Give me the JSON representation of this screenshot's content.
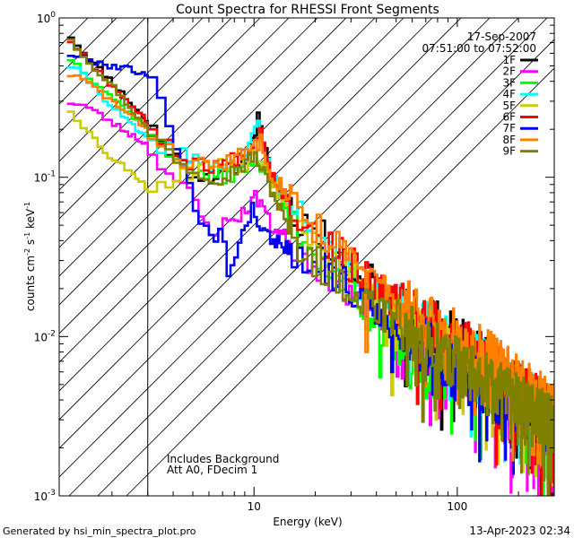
{
  "chart_data": {
    "type": "line",
    "title": "Count Spectra for RHESSI Front Segments",
    "xlabel": "Energy (keV)",
    "ylabel": "counts cm-2 s-1 keV-1",
    "xscale": "log",
    "yscale": "log",
    "xlim": [
      1.1,
      300
    ],
    "ylim": [
      0.001,
      1.0
    ],
    "x_tick_labels": [
      {
        "value": 10,
        "label": "10"
      },
      {
        "value": 100,
        "label": "100"
      }
    ],
    "y_tick_labels": [
      {
        "value": 1.0,
        "base": "10",
        "exp": "0"
      },
      {
        "value": 0.1,
        "base": "10",
        "exp": "-1"
      },
      {
        "value": 0.01,
        "base": "10",
        "exp": "-2"
      },
      {
        "value": 0.001,
        "base": "10",
        "exp": "-3"
      }
    ],
    "date": "17-Sep-2007",
    "time_range": "07:51:00 to 07:52:00",
    "annotations": [
      "Includes Background",
      "Att A0, FDecim 1"
    ],
    "attenuator_threshold_kev": 3.0,
    "hatched_region": [
      1.1,
      3.0
    ],
    "footer_left": "Generated by hsi_min_spectra_plot.pro",
    "footer_right": "13-Apr-2023 02:34",
    "series": [
      {
        "name": "1F",
        "color": "#000000",
        "seed": 11,
        "offset": 0.06,
        "points": [
          [
            1.2,
            0.82
          ],
          [
            1.5,
            0.58
          ],
          [
            2,
            0.4
          ],
          [
            3,
            0.22
          ],
          [
            4,
            0.14
          ],
          [
            5,
            0.105
          ],
          [
            7,
            0.1
          ],
          [
            9,
            0.13
          ],
          [
            10,
            0.17
          ],
          [
            10.5,
            0.27
          ],
          [
            11,
            0.16
          ],
          [
            13,
            0.09
          ],
          [
            15,
            0.065
          ],
          [
            20,
            0.045
          ],
          [
            30,
            0.028
          ],
          [
            50,
            0.016
          ],
          [
            60,
            0.013
          ],
          [
            80,
            0.011
          ],
          [
            100,
            0.009
          ],
          [
            150,
            0.006
          ],
          [
            200,
            0.0045
          ],
          [
            300,
            0.003
          ]
        ]
      },
      {
        "name": "2F",
        "color": "#ff00ff",
        "seed": 23,
        "offset": -0.05,
        "points": [
          [
            1.2,
            0.3
          ],
          [
            1.5,
            0.28
          ],
          [
            2,
            0.22
          ],
          [
            3,
            0.16
          ],
          [
            4,
            0.1
          ],
          [
            5,
            0.075
          ],
          [
            6,
            0.045
          ],
          [
            7,
            0.05
          ],
          [
            8,
            0.055
          ],
          [
            9,
            0.06
          ],
          [
            10,
            0.075
          ],
          [
            11,
            0.07
          ],
          [
            12,
            0.05
          ],
          [
            15,
            0.04
          ],
          [
            20,
            0.03
          ],
          [
            30,
            0.02
          ],
          [
            50,
            0.012
          ],
          [
            80,
            0.008
          ],
          [
            100,
            0.007
          ],
          [
            150,
            0.005
          ],
          [
            200,
            0.0035
          ],
          [
            300,
            0.0022
          ]
        ]
      },
      {
        "name": "3F",
        "color": "#00ff00",
        "seed": 37,
        "offset": -0.1,
        "points": [
          [
            1.2,
            0.58
          ],
          [
            1.5,
            0.45
          ],
          [
            2,
            0.32
          ],
          [
            3,
            0.2
          ],
          [
            4,
            0.14
          ],
          [
            5,
            0.11
          ],
          [
            7,
            0.1
          ],
          [
            9,
            0.11
          ],
          [
            10,
            0.13
          ],
          [
            11,
            0.12
          ],
          [
            13,
            0.08
          ],
          [
            15,
            0.055
          ],
          [
            20,
            0.035
          ],
          [
            30,
            0.02
          ],
          [
            40,
            0.012
          ],
          [
            50,
            0.009
          ],
          [
            60,
            0.007
          ],
          [
            80,
            0.0055
          ],
          [
            100,
            0.006
          ],
          [
            150,
            0.0045
          ],
          [
            200,
            0.004
          ],
          [
            300,
            0.003
          ]
        ]
      },
      {
        "name": "4F",
        "color": "#00ffff",
        "seed": 41,
        "offset": 0.0,
        "points": [
          [
            1.2,
            0.52
          ],
          [
            1.5,
            0.42
          ],
          [
            2,
            0.28
          ],
          [
            3,
            0.17
          ],
          [
            4,
            0.15
          ],
          [
            5,
            0.13
          ],
          [
            7,
            0.115
          ],
          [
            9,
            0.12
          ],
          [
            10,
            0.19
          ],
          [
            10.5,
            0.24
          ],
          [
            11,
            0.15
          ],
          [
            13,
            0.09
          ],
          [
            15,
            0.065
          ],
          [
            20,
            0.04
          ],
          [
            30,
            0.025
          ],
          [
            50,
            0.015
          ],
          [
            80,
            0.01
          ],
          [
            100,
            0.008
          ],
          [
            150,
            0.006
          ],
          [
            200,
            0.0045
          ],
          [
            300,
            0.0032
          ]
        ]
      },
      {
        "name": "5F",
        "color": "#cccc00",
        "seed": 53,
        "offset": -0.02,
        "points": [
          [
            1.2,
            0.28
          ],
          [
            1.5,
            0.2
          ],
          [
            2,
            0.13
          ],
          [
            2.5,
            0.11
          ],
          [
            3,
            0.085
          ],
          [
            4,
            0.095
          ],
          [
            5,
            0.11
          ],
          [
            6,
            0.12
          ],
          [
            7,
            0.12
          ],
          [
            9,
            0.12
          ],
          [
            10,
            0.15
          ],
          [
            11,
            0.13
          ],
          [
            13,
            0.085
          ],
          [
            15,
            0.06
          ],
          [
            20,
            0.04
          ],
          [
            30,
            0.024
          ],
          [
            50,
            0.014
          ],
          [
            80,
            0.009
          ],
          [
            100,
            0.0075
          ],
          [
            150,
            0.0055
          ],
          [
            200,
            0.004
          ],
          [
            300,
            0.0028
          ]
        ]
      },
      {
        "name": "6F",
        "color": "#ff0000",
        "seed": 67,
        "offset": 0.04,
        "points": [
          [
            1.2,
            0.76
          ],
          [
            1.5,
            0.56
          ],
          [
            2,
            0.38
          ],
          [
            3,
            0.22
          ],
          [
            4,
            0.15
          ],
          [
            5,
            0.12
          ],
          [
            7,
            0.12
          ],
          [
            9,
            0.14
          ],
          [
            10,
            0.17
          ],
          [
            11,
            0.2
          ],
          [
            12,
            0.11
          ],
          [
            15,
            0.07
          ],
          [
            20,
            0.045
          ],
          [
            30,
            0.028
          ],
          [
            50,
            0.016
          ],
          [
            80,
            0.011
          ],
          [
            100,
            0.009
          ],
          [
            150,
            0.0065
          ],
          [
            200,
            0.0048
          ],
          [
            300,
            0.0032
          ]
        ]
      },
      {
        "name": "7F",
        "color": "#0000ee",
        "seed": 79,
        "offset": -0.04,
        "points": [
          [
            1.2,
            0.6
          ],
          [
            1.5,
            0.55
          ],
          [
            2,
            0.5
          ],
          [
            2.5,
            0.48
          ],
          [
            3,
            0.43
          ],
          [
            3.5,
            0.3
          ],
          [
            4,
            0.2
          ],
          [
            4.5,
            0.12
          ],
          [
            5,
            0.07
          ],
          [
            5.5,
            0.055
          ],
          [
            6,
            0.05
          ],
          [
            6.5,
            0.04
          ],
          [
            7,
            0.045
          ],
          [
            7.5,
            0.025
          ],
          [
            8,
            0.03
          ],
          [
            8.5,
            0.04
          ],
          [
            9,
            0.05
          ],
          [
            10,
            0.065
          ],
          [
            11,
            0.045
          ],
          [
            13,
            0.04
          ],
          [
            15,
            0.035
          ],
          [
            20,
            0.03
          ],
          [
            30,
            0.02
          ],
          [
            50,
            0.012
          ],
          [
            80,
            0.0075
          ],
          [
            100,
            0.006
          ],
          [
            150,
            0.0045
          ],
          [
            200,
            0.0035
          ],
          [
            300,
            0.0025
          ]
        ]
      },
      {
        "name": "8F",
        "color": "#ff8000",
        "seed": 83,
        "offset": 0.05,
        "points": [
          [
            1.2,
            0.45
          ],
          [
            1.5,
            0.4
          ],
          [
            2,
            0.3
          ],
          [
            3,
            0.2
          ],
          [
            4,
            0.14
          ],
          [
            5,
            0.12
          ],
          [
            7,
            0.12
          ],
          [
            9,
            0.14
          ],
          [
            10,
            0.16
          ],
          [
            11,
            0.17
          ],
          [
            12,
            0.11
          ],
          [
            15,
            0.075
          ],
          [
            20,
            0.05
          ],
          [
            30,
            0.03
          ],
          [
            50,
            0.017
          ],
          [
            80,
            0.012
          ],
          [
            100,
            0.0095
          ],
          [
            150,
            0.007
          ],
          [
            200,
            0.005
          ],
          [
            300,
            0.0035
          ]
        ]
      },
      {
        "name": "9F",
        "color": "#808000",
        "seed": 97,
        "offset": -0.03,
        "points": [
          [
            1.2,
            0.8
          ],
          [
            1.5,
            0.55
          ],
          [
            2,
            0.38
          ],
          [
            3,
            0.2
          ],
          [
            4,
            0.14
          ],
          [
            5,
            0.11
          ],
          [
            7,
            0.1
          ],
          [
            9,
            0.12
          ],
          [
            10,
            0.14
          ],
          [
            11,
            0.11
          ],
          [
            13,
            0.07
          ],
          [
            15,
            0.045
          ],
          [
            20,
            0.03
          ],
          [
            30,
            0.02
          ],
          [
            50,
            0.012
          ],
          [
            80,
            0.008
          ],
          [
            100,
            0.0065
          ],
          [
            150,
            0.005
          ],
          [
            200,
            0.0038
          ],
          [
            300,
            0.0028
          ]
        ]
      }
    ]
  }
}
